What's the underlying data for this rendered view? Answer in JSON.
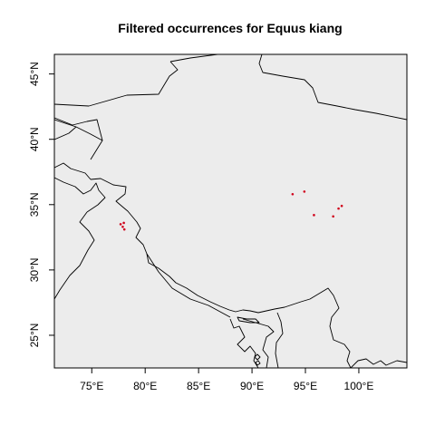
{
  "map": {
    "title": "Filtered occurrences for Equus kiang",
    "lon_range": [
      71.5,
      104.5
    ],
    "lat_range": [
      22.5,
      46.5
    ],
    "background_color": "#ececec",
    "point_color": "#d0021b",
    "x_ticks": [
      {
        "value": 75,
        "label": "75°E"
      },
      {
        "value": 80,
        "label": "80°E"
      },
      {
        "value": 85,
        "label": "85°E"
      },
      {
        "value": 90,
        "label": "90°E"
      },
      {
        "value": 95,
        "label": "95°E"
      },
      {
        "value": 100,
        "label": "100°E"
      }
    ],
    "y_ticks": [
      {
        "value": 25,
        "label": "25°N"
      },
      {
        "value": 30,
        "label": "30°N"
      },
      {
        "value": 35,
        "label": "35°N"
      },
      {
        "value": 40,
        "label": "40°N"
      },
      {
        "value": 45,
        "label": "45°N"
      }
    ],
    "occurrences": [
      {
        "lon": 77.7,
        "lat": 33.5
      },
      {
        "lon": 77.9,
        "lat": 33.3
      },
      {
        "lon": 78.0,
        "lat": 33.6
      },
      {
        "lon": 78.05,
        "lat": 33.1
      },
      {
        "lon": 93.8,
        "lat": 35.8
      },
      {
        "lon": 94.9,
        "lat": 36.0
      },
      {
        "lon": 95.8,
        "lat": 34.2
      },
      {
        "lon": 97.6,
        "lat": 34.1
      },
      {
        "lon": 98.1,
        "lat": 34.7
      },
      {
        "lon": 98.4,
        "lat": 34.9
      }
    ]
  }
}
